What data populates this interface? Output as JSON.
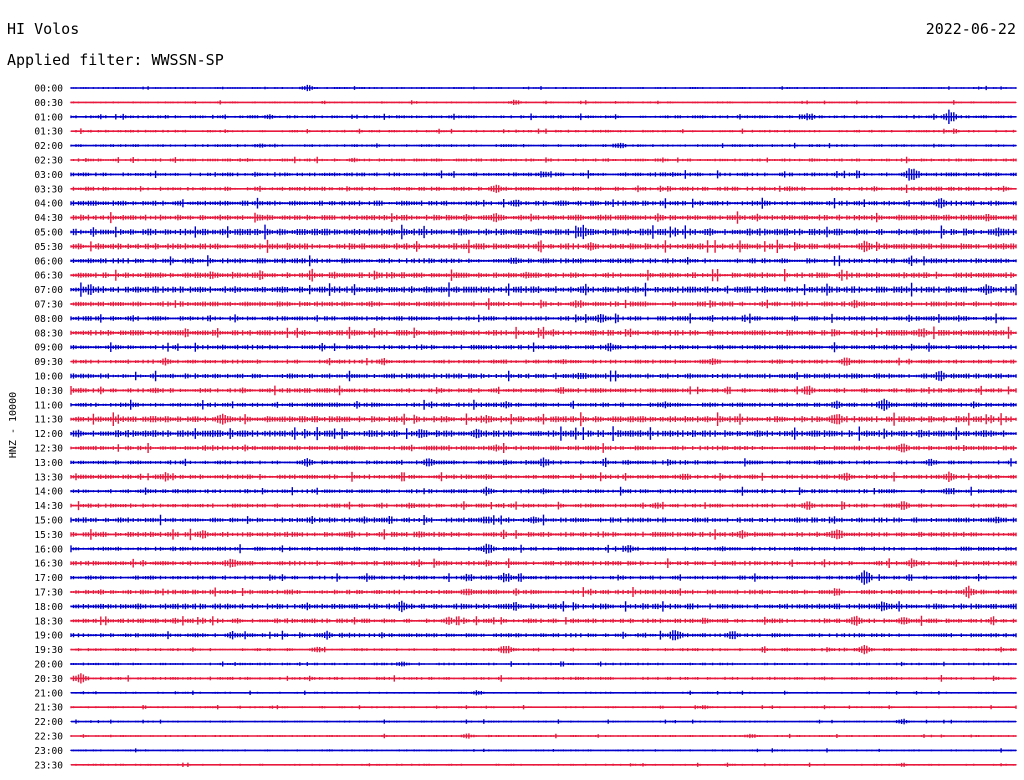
{
  "header": {
    "station": "HI Volos",
    "date": "2022-06-22",
    "filter": "Applied filter: WWSSN-SP"
  },
  "chart_data": {
    "type": "line",
    "title": "HI Volos",
    "ylabel": "HNZ - 10000",
    "row_labels": [
      "00:00",
      "00:30",
      "01:00",
      "01:30",
      "02:00",
      "02:30",
      "03:00",
      "03:30",
      "04:00",
      "04:30",
      "05:00",
      "05:30",
      "06:00",
      "06:30",
      "07:00",
      "07:30",
      "08:00",
      "08:30",
      "09:00",
      "09:30",
      "10:00",
      "10:30",
      "11:00",
      "11:30",
      "12:00",
      "12:30",
      "13:00",
      "13:30",
      "14:00",
      "14:30",
      "15:00",
      "15:30",
      "16:00",
      "16:30",
      "17:00",
      "17:30",
      "18:00",
      "18:30",
      "19:00",
      "19:30",
      "20:00",
      "20:30",
      "21:00",
      "21:30",
      "22:00",
      "22:30",
      "23:00",
      "23:30"
    ],
    "colors": [
      "#0000cc",
      "#e8193c"
    ],
    "noise_level": [
      0.8,
      0.8,
      1.2,
      1.0,
      1.1,
      1.2,
      1.5,
      1.6,
      2.0,
      2.2,
      2.6,
      2.4,
      2.0,
      2.2,
      2.6,
      2.0,
      1.8,
      2.2,
      1.8,
      1.6,
      2.0,
      1.8,
      1.8,
      2.4,
      2.6,
      1.8,
      1.6,
      1.8,
      1.6,
      1.6,
      2.0,
      2.0,
      1.6,
      1.8,
      1.6,
      1.8,
      2.2,
      1.8,
      1.6,
      1.2,
      1.0,
      1.2,
      0.8,
      0.8,
      0.8,
      0.8,
      0.8,
      0.8
    ],
    "events": [
      [
        [
          0.25,
          4
        ]
      ],
      [
        [
          0.47,
          3
        ]
      ],
      [
        [
          0.21,
          3
        ],
        [
          0.78,
          5
        ],
        [
          0.93,
          8
        ]
      ],
      [],
      [
        [
          0.2,
          3
        ],
        [
          0.58,
          4
        ]
      ],
      [
        [
          0.3,
          3
        ]
      ],
      [
        [
          0.5,
          4
        ],
        [
          0.89,
          9
        ]
      ],
      [
        [
          0.45,
          5
        ]
      ],
      [
        [
          0.05,
          3
        ],
        [
          0.47,
          5
        ],
        [
          0.52,
          4
        ],
        [
          0.92,
          6
        ]
      ],
      [
        [
          0.2,
          4
        ],
        [
          0.45,
          6
        ],
        [
          0.7,
          3
        ],
        [
          0.97,
          5
        ]
      ],
      [
        [
          0.54,
          7
        ],
        [
          0.98,
          6
        ]
      ],
      [
        [
          0.23,
          4
        ],
        [
          0.55,
          5
        ],
        [
          0.84,
          6
        ]
      ],
      [
        [
          0.47,
          5
        ],
        [
          0.54,
          3
        ]
      ],
      [
        [
          0.01,
          3
        ],
        [
          0.2,
          5
        ]
      ],
      [
        [
          0.02,
          6
        ],
        [
          0.97,
          7
        ]
      ],
      [
        [
          0.22,
          3
        ],
        [
          0.54,
          4
        ],
        [
          0.83,
          5
        ]
      ],
      [
        [
          0.56,
          6
        ]
      ],
      [
        [
          0.14,
          3
        ],
        [
          0.5,
          4
        ],
        [
          0.9,
          6
        ]
      ],
      [
        [
          0.57,
          5
        ]
      ],
      [
        [
          0.1,
          4
        ],
        [
          0.68,
          5
        ],
        [
          0.82,
          5
        ]
      ],
      [
        [
          0.54,
          5
        ],
        [
          0.92,
          6
        ]
      ],
      [
        [
          0.01,
          3
        ],
        [
          0.09,
          4
        ],
        [
          0.27,
          3
        ],
        [
          0.52,
          4
        ],
        [
          0.78,
          6
        ]
      ],
      [
        [
          0.46,
          4
        ],
        [
          0.81,
          5
        ],
        [
          0.86,
          7
        ]
      ],
      [
        [
          0.16,
          6
        ],
        [
          0.44,
          5
        ],
        [
          0.81,
          7
        ]
      ],
      [
        [
          0.15,
          5
        ],
        [
          0.37,
          5
        ],
        [
          0.43,
          7
        ],
        [
          0.9,
          5
        ]
      ],
      [
        [
          0.29,
          3
        ],
        [
          0.45,
          4
        ],
        [
          0.88,
          6
        ]
      ],
      [
        [
          0.25,
          5
        ],
        [
          0.38,
          6
        ],
        [
          0.5,
          5
        ],
        [
          0.91,
          5
        ]
      ],
      [
        [
          0.1,
          5
        ],
        [
          0.44,
          4
        ],
        [
          0.65,
          4
        ],
        [
          0.82,
          6
        ],
        [
          0.93,
          6
        ]
      ],
      [
        [
          0.44,
          5
        ],
        [
          0.5,
          4
        ],
        [
          0.93,
          5
        ]
      ],
      [
        [
          0.36,
          4
        ],
        [
          0.62,
          4
        ],
        [
          0.78,
          5
        ],
        [
          0.88,
          5
        ]
      ],
      [
        [
          0.31,
          4
        ],
        [
          0.44,
          5
        ],
        [
          0.49,
          4
        ],
        [
          0.98,
          5
        ]
      ],
      [
        [
          0.14,
          5
        ],
        [
          0.37,
          5
        ],
        [
          0.71,
          5
        ],
        [
          0.81,
          7
        ]
      ],
      [
        [
          0.44,
          7
        ],
        [
          0.59,
          5
        ]
      ],
      [
        [
          0.17,
          5
        ],
        [
          0.44,
          4
        ],
        [
          0.89,
          5
        ]
      ],
      [
        [
          0.42,
          5
        ],
        [
          0.46,
          6
        ],
        [
          0.84,
          8
        ]
      ],
      [
        [
          0.03,
          3
        ],
        [
          0.23,
          4
        ],
        [
          0.42,
          5
        ],
        [
          0.81,
          5
        ],
        [
          0.95,
          7
        ]
      ],
      [
        [
          0.35,
          6
        ],
        [
          0.47,
          5
        ],
        [
          0.86,
          6
        ]
      ],
      [
        [
          0.11,
          3
        ],
        [
          0.4,
          5
        ],
        [
          0.67,
          4
        ],
        [
          0.83,
          6
        ],
        [
          0.88,
          5
        ]
      ],
      [
        [
          0.17,
          5
        ],
        [
          0.27,
          5
        ],
        [
          0.64,
          7
        ],
        [
          0.7,
          5
        ]
      ],
      [
        [
          0.26,
          4
        ],
        [
          0.46,
          6
        ],
        [
          0.84,
          6
        ]
      ],
      [
        [
          0.35,
          3
        ]
      ],
      [
        [
          0.01,
          7
        ]
      ],
      [
        [
          0.43,
          3
        ]
      ],
      [
        [
          0.67,
          3
        ]
      ],
      [
        [
          0.88,
          4
        ]
      ],
      [
        [
          0.42,
          3
        ],
        [
          0.72,
          3
        ]
      ],
      [],
      []
    ]
  }
}
